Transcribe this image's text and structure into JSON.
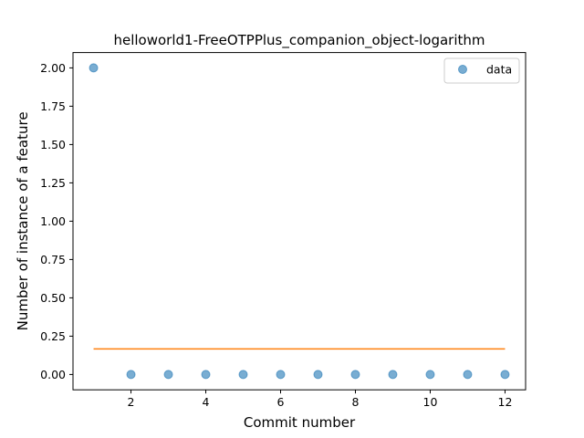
{
  "chart_data": {
    "type": "scatter",
    "title": "helloworld1-FreeOTPPlus_companion_object-logarithm",
    "xlabel": "Commit number",
    "ylabel": "Number of instance of a feature",
    "xlim": [
      0.45,
      12.55
    ],
    "ylim": [
      -0.1,
      2.1
    ],
    "xticks": [
      2,
      4,
      6,
      8,
      10,
      12
    ],
    "xtick_labels": [
      "2",
      "4",
      "6",
      "8",
      "10",
      "12"
    ],
    "yticks": [
      0.0,
      0.25,
      0.5,
      0.75,
      1.0,
      1.25,
      1.5,
      1.75,
      2.0
    ],
    "ytick_labels": [
      "0.00",
      "0.25",
      "0.50",
      "0.75",
      "1.00",
      "1.25",
      "1.50",
      "1.75",
      "2.00"
    ],
    "grid": false,
    "legend_position": "top-right",
    "series": [
      {
        "name": "data",
        "kind": "scatter",
        "color": "#1f77b4",
        "x": [
          1,
          2,
          3,
          4,
          5,
          6,
          7,
          8,
          9,
          10,
          11,
          12
        ],
        "y": [
          2,
          0,
          0,
          0,
          0,
          0,
          0,
          0,
          0,
          0,
          0,
          0
        ]
      },
      {
        "kind": "line",
        "color": "#ff7f0e",
        "x": [
          1,
          12
        ],
        "y": [
          0.167,
          0.167
        ]
      }
    ]
  }
}
